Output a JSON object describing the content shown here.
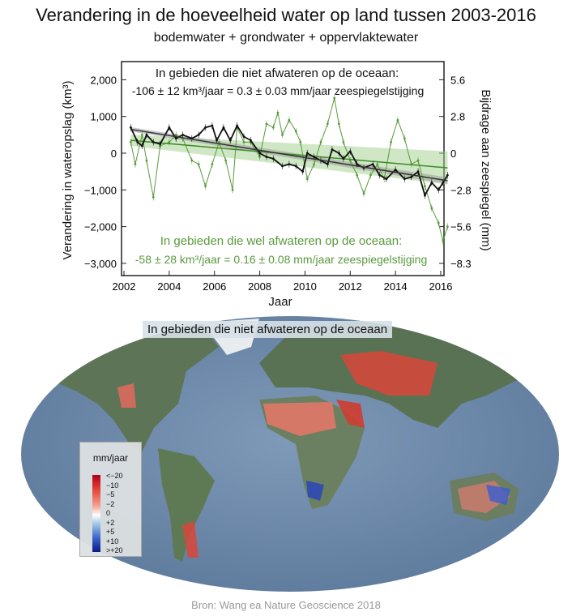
{
  "title": "Verandering in de hoeveelheid water op land tussen 2003-2016",
  "subtitle": "bodemwater + grondwater + oppervlaktewater",
  "chart_data": {
    "type": "line",
    "xlabel": "Jaar",
    "ylabel": "Verandering in wateropslag (km³)",
    "ylabel_right": "Bijdrage aan zeespiegel (mm)",
    "xlim": [
      2002,
      2016.3
    ],
    "ylim": [
      -3300,
      2500
    ],
    "xticks": [
      "2002",
      "2004",
      "2006",
      "2008",
      "2010",
      "2012",
      "2014",
      "2016"
    ],
    "yticks": [
      "2,000",
      "1,000",
      "0",
      "−1,000",
      "−2,000",
      "−3,000"
    ],
    "ytick_values": [
      2000,
      1000,
      0,
      -1000,
      -2000,
      -3000
    ],
    "yticks_right": [
      "5.6",
      "2.8",
      "0",
      "−2.8",
      "−5.6",
      "−8.3"
    ],
    "annotation_black_1": "In gebieden die niet afwateren op de oceaan:",
    "annotation_black_2": "-106 ± 12 km³/jaar = 0.3 ± 0.03 mm/jaar zeespiegelstijging",
    "annotation_green_1": "In gebieden die wel afwateren op de oceaan:",
    "annotation_green_2": "-58 ± 28 km³/jaar = 0.16 ± 0.08 mm/jaar zeespiegelstijging",
    "series": [
      {
        "name": "niet afwaterend",
        "color": "#111111",
        "x": [
          2002.3,
          2002.6,
          2002.8,
          2003,
          2003.3,
          2003.6,
          2004,
          2004.3,
          2004.6,
          2005,
          2005.3,
          2005.6,
          2005.9,
          2006.1,
          2006.4,
          2006.7,
          2007,
          2007.3,
          2007.6,
          2008,
          2008.3,
          2008.6,
          2009,
          2009.3,
          2009.6,
          2009.9,
          2010.1,
          2010.4,
          2010.7,
          2011,
          2011.2,
          2011.5,
          2011.7,
          2012,
          2012.3,
          2012.6,
          2013,
          2013.3,
          2013.6,
          2014,
          2014.4,
          2014.7,
          2015,
          2015.3,
          2015.6,
          2015.9,
          2016.1,
          2016.3
        ],
        "y": [
          700,
          300,
          200,
          500,
          300,
          250,
          700,
          400,
          500,
          400,
          500,
          700,
          750,
          350,
          700,
          350,
          750,
          450,
          350,
          0,
          -100,
          -150,
          -350,
          -300,
          -350,
          -500,
          0,
          -100,
          -200,
          -300,
          100,
          0,
          -150,
          50,
          -300,
          -400,
          -300,
          -600,
          -700,
          -450,
          -700,
          -650,
          -500,
          -1150,
          -800,
          -1000,
          -800,
          -600
        ],
        "trend": [
          650,
          -750
        ]
      },
      {
        "name": "wel afwaterend",
        "color": "#5a9a3c",
        "x": [
          2002.3,
          2002.5,
          2002.8,
          2003,
          2003.3,
          2003.6,
          2004,
          2004.3,
          2004.6,
          2005,
          2005.3,
          2005.6,
          2005.9,
          2006.2,
          2006.5,
          2006.8,
          2007,
          2007.3,
          2007.6,
          2008,
          2008.3,
          2008.6,
          2008.8,
          2009,
          2009.3,
          2009.6,
          2009.8,
          2010.1,
          2010.4,
          2010.7,
          2011,
          2011.3,
          2011.5,
          2011.7,
          2012,
          2012.3,
          2012.6,
          2012.9,
          2013.2,
          2013.5,
          2013.8,
          2014.1,
          2014.4,
          2014.7,
          2015,
          2015.3,
          2015.6,
          2015.9,
          2016.1,
          2016.3
        ],
        "y": [
          300,
          -300,
          500,
          -200,
          -1200,
          200,
          300,
          500,
          400,
          -200,
          -300,
          -900,
          -300,
          300,
          -200,
          -1000,
          700,
          300,
          300,
          -100,
          800,
          700,
          1100,
          500,
          900,
          600,
          300,
          -700,
          -300,
          300,
          800,
          1500,
          800,
          300,
          -200,
          -600,
          -1100,
          -600,
          -300,
          -700,
          300,
          900,
          400,
          -300,
          -200,
          -900,
          -1500,
          -1900,
          -2400,
          -2000
        ],
        "trend": [
          350,
          -400
        ]
      }
    ]
  },
  "map": {
    "label": "In gebieden die niet afwateren op de oceaan",
    "legend_title": "mm/jaar",
    "legend_ticks": [
      "<−20",
      "−10",
      "−5",
      "−2",
      "0",
      "+2",
      "+5",
      "+10",
      ">+20"
    ]
  },
  "source": "Bron: Wang ea Nature Geoscience 2018"
}
